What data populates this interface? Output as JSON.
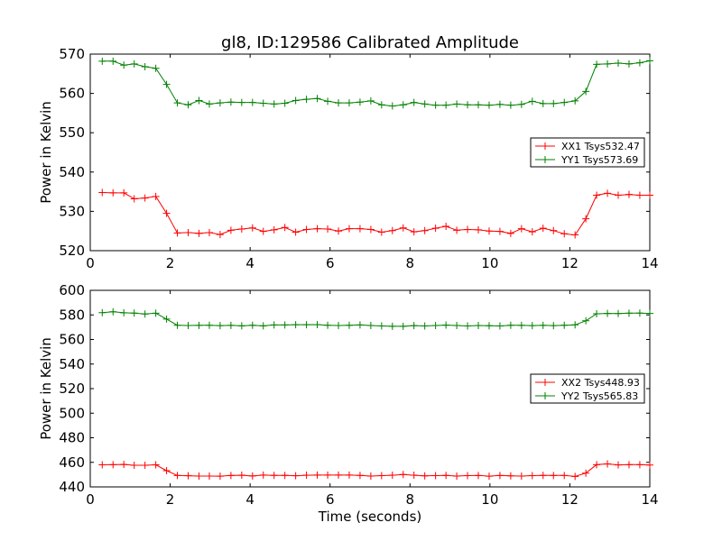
{
  "title": "gl8, ID:129586 Calibrated Amplitude",
  "chart_data": [
    {
      "type": "line",
      "ylabel": "Power in Kelvin",
      "xlabel": "",
      "xlim": [
        0,
        14
      ],
      "ylim": [
        520,
        570
      ],
      "xticks": [
        0,
        2,
        4,
        6,
        8,
        10,
        12,
        14
      ],
      "yticks": [
        520,
        530,
        540,
        550,
        560,
        570
      ],
      "legend_position": "right",
      "x": [
        0.3,
        0.57,
        0.84,
        1.1,
        1.37,
        1.64,
        1.91,
        2.18,
        2.45,
        2.72,
        2.98,
        3.25,
        3.52,
        3.79,
        4.06,
        4.33,
        4.6,
        4.87,
        5.14,
        5.41,
        5.68,
        5.94,
        6.21,
        6.48,
        6.75,
        7.02,
        7.29,
        7.56,
        7.83,
        8.1,
        8.37,
        8.64,
        8.9,
        9.17,
        9.44,
        9.71,
        9.98,
        10.25,
        10.52,
        10.79,
        11.06,
        11.33,
        11.59,
        11.86,
        12.13,
        12.4,
        12.67,
        12.94,
        13.21,
        13.48,
        13.75,
        14.0
      ],
      "series": [
        {
          "name": "XX1 Tsys532.47",
          "color": "#ff0000",
          "values": [
            534.8,
            534.7,
            534.7,
            533.2,
            533.4,
            533.8,
            529.5,
            524.5,
            524.6,
            524.4,
            524.6,
            524.1,
            525.2,
            525.5,
            525.8,
            524.9,
            525.3,
            525.9,
            524.7,
            525.4,
            525.6,
            525.5,
            525.0,
            525.6,
            525.6,
            525.4,
            524.7,
            525.1,
            525.8,
            524.8,
            525.1,
            525.7,
            526.2,
            525.2,
            525.4,
            525.3,
            525.0,
            524.9,
            524.4,
            525.6,
            524.8,
            525.7,
            525.1,
            524.3,
            524.0,
            528.1,
            534.1,
            534.6,
            534.1,
            534.3,
            534.1,
            534.1
          ]
        },
        {
          "name": "YY1 Tsys573.69",
          "color": "#008000",
          "values": [
            568.2,
            568.2,
            567.2,
            567.5,
            566.8,
            566.4,
            562.3,
            557.6,
            557.1,
            558.2,
            557.3,
            557.6,
            557.8,
            557.7,
            557.7,
            557.5,
            557.3,
            557.5,
            558.2,
            558.5,
            558.7,
            558.0,
            557.6,
            557.6,
            557.8,
            558.1,
            557.1,
            556.8,
            557.1,
            557.7,
            557.3,
            557.0,
            557.0,
            557.3,
            557.1,
            557.1,
            557.0,
            557.2,
            557.0,
            557.2,
            558.0,
            557.4,
            557.4,
            557.7,
            558.1,
            560.5,
            567.4,
            567.5,
            567.7,
            567.5,
            567.8,
            568.3
          ]
        }
      ]
    },
    {
      "type": "line",
      "ylabel": "Power in Kelvin",
      "xlabel": "Time (seconds)",
      "xlim": [
        0,
        14
      ],
      "ylim": [
        440,
        600
      ],
      "xticks": [
        0,
        2,
        4,
        6,
        8,
        10,
        12,
        14
      ],
      "yticks": [
        440,
        460,
        480,
        500,
        520,
        540,
        560,
        580,
        600
      ],
      "legend_position": "right",
      "x": [
        0.3,
        0.57,
        0.84,
        1.1,
        1.37,
        1.64,
        1.91,
        2.18,
        2.45,
        2.72,
        2.98,
        3.25,
        3.52,
        3.79,
        4.06,
        4.33,
        4.6,
        4.87,
        5.14,
        5.41,
        5.68,
        5.94,
        6.21,
        6.48,
        6.75,
        7.02,
        7.29,
        7.56,
        7.83,
        8.1,
        8.37,
        8.64,
        8.9,
        9.17,
        9.44,
        9.71,
        9.98,
        10.25,
        10.52,
        10.79,
        11.06,
        11.33,
        11.59,
        11.86,
        12.13,
        12.4,
        12.67,
        12.94,
        13.21,
        13.48,
        13.75,
        14.0
      ],
      "series": [
        {
          "name": "XX2 Tsys448.93",
          "color": "#ff0000",
          "values": [
            458.0,
            458.1,
            458.3,
            457.6,
            457.6,
            458.0,
            453.2,
            449.3,
            449.1,
            448.8,
            448.8,
            448.7,
            449.3,
            449.5,
            448.9,
            449.6,
            449.4,
            449.4,
            449.1,
            449.5,
            449.6,
            449.6,
            449.6,
            449.6,
            449.4,
            448.8,
            449.2,
            449.5,
            450.1,
            449.5,
            449.0,
            449.2,
            449.4,
            448.8,
            449.2,
            449.3,
            448.7,
            449.3,
            449.0,
            448.8,
            449.2,
            449.4,
            449.3,
            449.3,
            448.5,
            451.2,
            458.1,
            458.7,
            457.9,
            458.1,
            458.1,
            457.8
          ]
        },
        {
          "name": "YY2 Tsys565.83",
          "color": "#008000",
          "values": [
            581.8,
            582.6,
            581.7,
            581.5,
            580.7,
            581.4,
            576.6,
            571.6,
            571.4,
            571.5,
            571.6,
            571.3,
            571.5,
            571.1,
            571.6,
            571.1,
            571.8,
            571.8,
            572.0,
            572.0,
            572.1,
            571.6,
            571.4,
            571.6,
            571.8,
            571.4,
            571.0,
            570.7,
            570.7,
            571.3,
            571.0,
            571.4,
            571.7,
            571.4,
            571.0,
            571.4,
            571.2,
            571.0,
            571.6,
            571.5,
            571.3,
            571.5,
            571.3,
            571.6,
            571.9,
            575.2,
            580.9,
            581.2,
            581.1,
            581.4,
            581.5,
            581.2
          ]
        }
      ]
    }
  ]
}
